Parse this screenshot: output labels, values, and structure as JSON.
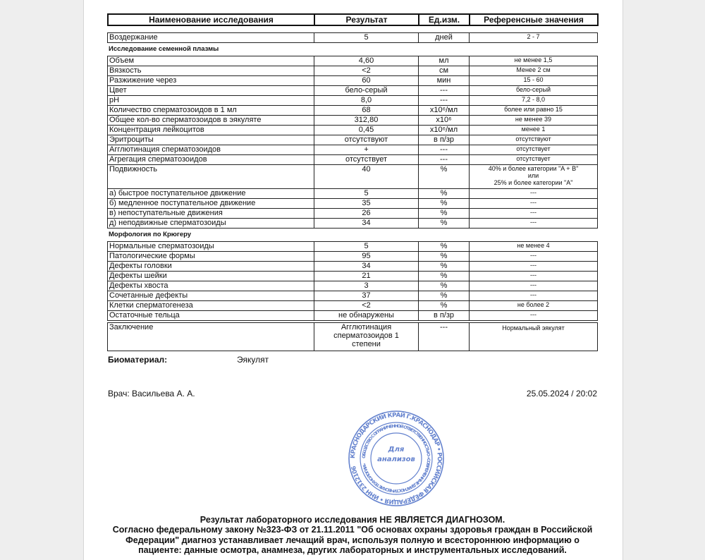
{
  "table": {
    "columns": [
      "Наименование исследования",
      "Результат",
      "Ед.изм.",
      "Референсные значения"
    ],
    "groups": [
      {
        "rows": [
          [
            "Воздержание",
            "5",
            "дней",
            "2 - 7"
          ]
        ]
      },
      {
        "title": "Исследование семенной плазмы",
        "rows": [
          [
            "Объем",
            "4,60",
            "мл",
            "не менее 1,5"
          ],
          [
            "Вязкость",
            "<2",
            "см",
            "Менее 2 см"
          ],
          [
            "Разжижение через",
            "60",
            "мин",
            "15 - 60"
          ],
          [
            "Цвет",
            "бело-серый",
            "---",
            "бело-серый"
          ],
          [
            "pH",
            "8,0",
            "---",
            "7,2 - 8,0"
          ],
          [
            "Количество сперматозоидов в 1 мл",
            "68",
            "x10⁶/мл",
            "более или равно 15"
          ],
          [
            "Общее кол-во сперматозоидов в эякуляте",
            "312,80",
            "x10⁶",
            "не менее 39"
          ],
          [
            "Концентрация лейкоцитов",
            "0,45",
            "x10⁶/мл",
            "менее 1"
          ],
          [
            "Эритроциты",
            "отсутствуют",
            "в п/зр",
            "отсутствуют"
          ],
          [
            "Агглютинация сперматозоидов",
            "+",
            "---",
            "отсутствует"
          ],
          [
            "Агрегация сперматозоидов",
            "отсутствует",
            "---",
            "отсутствует"
          ],
          [
            "Подвижность",
            "40",
            "%",
            "40% и более категории \"A + B\"\nили\n25% и более категории \"A\""
          ],
          [
            "а) быстрое поступательное движение",
            "5",
            "%",
            "---"
          ],
          [
            "б) медленное поступательное движение",
            "35",
            "%",
            "---"
          ],
          [
            "в) непоступательные движения",
            "26",
            "%",
            "---"
          ],
          [
            "д) неподвижные сперматозоиды",
            "34",
            "%",
            "---"
          ]
        ]
      },
      {
        "title": "Морфология по Крюгеру",
        "rows": [
          [
            "Нормальные сперматозоиды",
            "5",
            "%",
            "не менее 4"
          ],
          [
            "Патологические формы",
            "95",
            "%",
            "---"
          ],
          [
            "Дефекты головки",
            "34",
            "%",
            "---"
          ],
          [
            "Дефекты шейки",
            "21",
            "%",
            "---"
          ],
          [
            "Дефекты хвоста",
            "3",
            "%",
            "---"
          ],
          [
            "Сочетанные дефекты",
            "37",
            "%",
            "---"
          ],
          [
            "Клетки сперматогенеза",
            "<2",
            "%",
            "не более 2"
          ],
          [
            "Остаточные тельца",
            "не обнаружены",
            "в п/зр",
            "---"
          ]
        ]
      },
      {
        "rows": [
          [
            "Заключение",
            "Агглютинация\nсперматозоидов 1\nстепени",
            "---",
            "Нормальный эякулят"
          ]
        ]
      }
    ]
  },
  "biomaterial": {
    "label": "Биоматериал:",
    "value": "Эякулят"
  },
  "doctor": "Врач: Васильева А. А.",
  "datetime": "25.05.2024 / 20:02",
  "stamp": {
    "outer": "КРАСНОДАРСКИЙ КРАЙ Г.КРАСНОДАР • РОССИЙСКАЯ ФЕДЕРАЦИЯ • ИНН 2312106",
    "inner": "ОБЩЕСТВО С ОГРАНИЧЕННОЙ ОТВЕТСТВЕННОСТЬЮ «СОВРЕМЕННЫЕ ДИАГНОСТИЧЕСКИЕ ТЕХНОЛОГИИ»",
    "center": [
      "Для",
      "анализов"
    ]
  },
  "footer": {
    "lines": [
      "Результат лабораторного исследования НЕ ЯВЛЯЕТСЯ ДИАГНОЗОМ.",
      "Согласно федеральному закону №323-ФЗ от 21.11.2011 \"Об основах охраны здоровья граждан в Российской",
      "Федерации\" диагноз устанавливает лечащий врач, используя полную и всестороннюю информацию о",
      "пациенте: данные осмотра, анамнеза, других лабораторных и инструментальных исследований."
    ]
  }
}
